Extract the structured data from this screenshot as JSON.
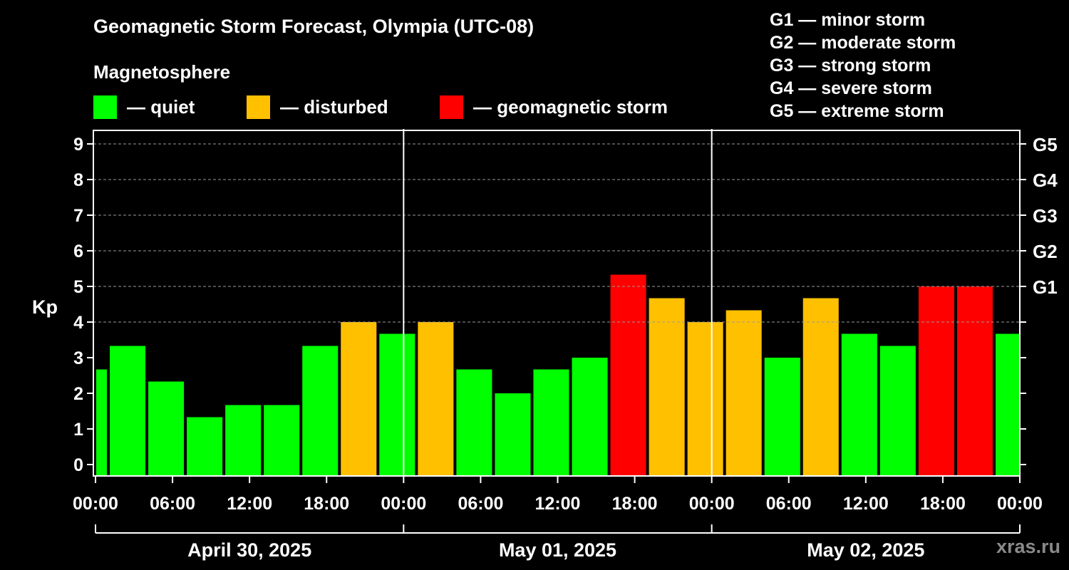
{
  "header": {
    "title": "Geomagnetic Storm Forecast, Olympia (UTC-08)",
    "subtitle": "Magnetosphere"
  },
  "legend": [
    {
      "label": "— quiet",
      "color": "#00ff00"
    },
    {
      "label": "— disturbed",
      "color": "#ffc000"
    },
    {
      "label": "— geomagnetic storm",
      "color": "#ff0000"
    }
  ],
  "storm_scale": [
    "G1 — minor storm",
    "G2 — moderate storm",
    "G3 — strong storm",
    "G4 — severe storm",
    "G5 — extreme storm"
  ],
  "watermark": "xras.ru",
  "chart_data": {
    "type": "bar",
    "ylabel": "Kp",
    "ylim": [
      0,
      9
    ],
    "y_ticks": [
      "0",
      "1",
      "2",
      "3",
      "4",
      "5",
      "6",
      "7",
      "8",
      "9"
    ],
    "right_ticks": [
      {
        "value": 5,
        "label": "G1"
      },
      {
        "value": 6,
        "label": "G2"
      },
      {
        "value": 7,
        "label": "G3"
      },
      {
        "value": 8,
        "label": "G4"
      },
      {
        "value": 9,
        "label": "G5"
      }
    ],
    "x_range_hours": [
      0,
      72
    ],
    "x_ticks": [
      "00:00",
      "06:00",
      "12:00",
      "18:00",
      "00:00",
      "06:00",
      "12:00",
      "18:00",
      "00:00",
      "06:00",
      "12:00",
      "18:00",
      "00:00"
    ],
    "dates": [
      "April 30, 2025",
      "May 01, 2025",
      "May 02, 2025"
    ],
    "bars": [
      {
        "start": 0,
        "end": 1,
        "kp": 2.67,
        "level": "quiet"
      },
      {
        "start": 1,
        "end": 4,
        "kp": 3.33,
        "level": "quiet"
      },
      {
        "start": 4,
        "end": 7,
        "kp": 2.33,
        "level": "quiet"
      },
      {
        "start": 7,
        "end": 10,
        "kp": 1.33,
        "level": "quiet"
      },
      {
        "start": 10,
        "end": 13,
        "kp": 1.67,
        "level": "quiet"
      },
      {
        "start": 13,
        "end": 16,
        "kp": 1.67,
        "level": "quiet"
      },
      {
        "start": 16,
        "end": 19,
        "kp": 3.33,
        "level": "quiet"
      },
      {
        "start": 19,
        "end": 22,
        "kp": 4.0,
        "level": "disturbed"
      },
      {
        "start": 22,
        "end": 25,
        "kp": 3.67,
        "level": "quiet"
      },
      {
        "start": 25,
        "end": 28,
        "kp": 4.0,
        "level": "disturbed"
      },
      {
        "start": 28,
        "end": 31,
        "kp": 2.67,
        "level": "quiet"
      },
      {
        "start": 31,
        "end": 34,
        "kp": 2.0,
        "level": "quiet"
      },
      {
        "start": 34,
        "end": 37,
        "kp": 2.67,
        "level": "quiet"
      },
      {
        "start": 37,
        "end": 40,
        "kp": 3.0,
        "level": "quiet"
      },
      {
        "start": 40,
        "end": 43,
        "kp": 5.33,
        "level": "storm"
      },
      {
        "start": 43,
        "end": 46,
        "kp": 4.67,
        "level": "disturbed"
      },
      {
        "start": 46,
        "end": 49,
        "kp": 4.0,
        "level": "disturbed"
      },
      {
        "start": 49,
        "end": 52,
        "kp": 4.33,
        "level": "disturbed"
      },
      {
        "start": 52,
        "end": 55,
        "kp": 3.0,
        "level": "quiet"
      },
      {
        "start": 55,
        "end": 58,
        "kp": 4.67,
        "level": "disturbed"
      },
      {
        "start": 58,
        "end": 61,
        "kp": 3.67,
        "level": "quiet"
      },
      {
        "start": 61,
        "end": 64,
        "kp": 3.33,
        "level": "quiet"
      },
      {
        "start": 64,
        "end": 67,
        "kp": 5.0,
        "level": "storm"
      },
      {
        "start": 67,
        "end": 70,
        "kp": 5.0,
        "level": "storm"
      },
      {
        "start": 70,
        "end": 72,
        "kp": 3.67,
        "level": "quiet"
      }
    ],
    "level_colors": {
      "quiet": "#00ff00",
      "disturbed": "#ffc000",
      "storm": "#ff0000"
    }
  }
}
